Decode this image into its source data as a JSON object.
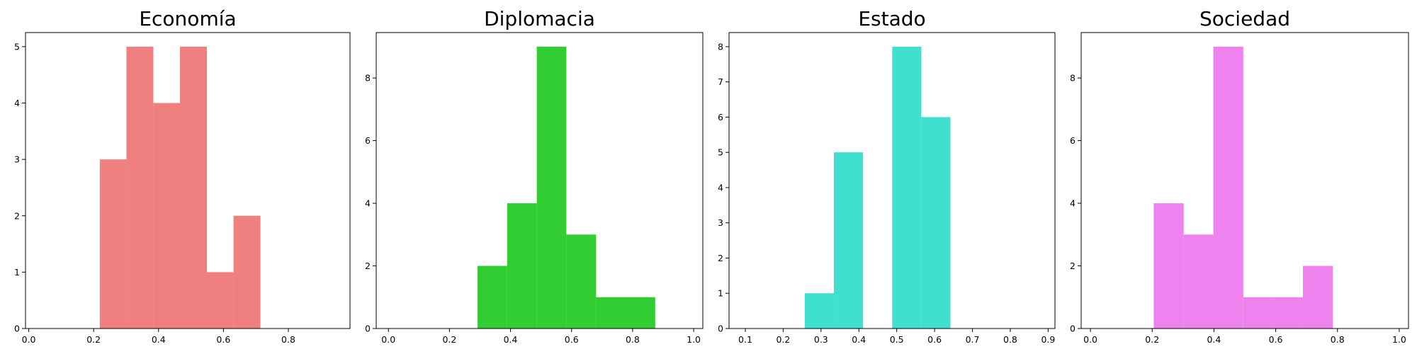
{
  "chart_data": [
    {
      "type": "bar",
      "title": "Economía",
      "color": "#f08080",
      "bins": [
        {
          "x0": 0.219,
          "x1": 0.301,
          "count": 3
        },
        {
          "x0": 0.301,
          "x1": 0.384,
          "count": 5
        },
        {
          "x0": 0.384,
          "x1": 0.466,
          "count": 4
        },
        {
          "x0": 0.466,
          "x1": 0.549,
          "count": 5
        },
        {
          "x0": 0.549,
          "x1": 0.631,
          "count": 1
        },
        {
          "x0": 0.631,
          "x1": 0.714,
          "count": 2
        }
      ],
      "xlim": [
        -0.01,
        0.99
      ],
      "ylim": [
        0,
        5.25
      ],
      "xticks": [
        0.0,
        0.2,
        0.4,
        0.6,
        0.8
      ],
      "xtick_labels": [
        "0.0",
        "0.2",
        "0.4",
        "0.6",
        "0.8"
      ],
      "yticks": [
        0,
        1,
        2,
        3,
        4,
        5
      ],
      "ytick_labels": [
        "0",
        "1",
        "2",
        "3",
        "4",
        "5"
      ]
    },
    {
      "type": "bar",
      "title": "Diplomacia",
      "color": "#32cd32",
      "bins": [
        {
          "x0": 0.292,
          "x1": 0.389,
          "count": 2
        },
        {
          "x0": 0.389,
          "x1": 0.486,
          "count": 4
        },
        {
          "x0": 0.486,
          "x1": 0.583,
          "count": 9
        },
        {
          "x0": 0.583,
          "x1": 0.68,
          "count": 3
        },
        {
          "x0": 0.68,
          "x1": 0.777,
          "count": 1
        },
        {
          "x0": 0.777,
          "x1": 0.874,
          "count": 1
        }
      ],
      "xlim": [
        -0.04,
        1.03
      ],
      "ylim": [
        0,
        9.45
      ],
      "xticks": [
        0.0,
        0.2,
        0.4,
        0.6,
        0.8,
        1.0
      ],
      "xtick_labels": [
        "0.0",
        "0.2",
        "0.4",
        "0.6",
        "0.8",
        "1.0"
      ],
      "yticks": [
        0,
        2,
        4,
        6,
        8
      ],
      "ytick_labels": [
        "0",
        "2",
        "4",
        "6",
        "8"
      ]
    },
    {
      "type": "bar",
      "title": "Estado",
      "color": "#40e0d0",
      "bins": [
        {
          "x0": 0.257,
          "x1": 0.334,
          "count": 1
        },
        {
          "x0": 0.334,
          "x1": 0.411,
          "count": 5
        },
        {
          "x0": 0.411,
          "x1": 0.488,
          "count": 0
        },
        {
          "x0": 0.488,
          "x1": 0.565,
          "count": 8
        },
        {
          "x0": 0.565,
          "x1": 0.642,
          "count": 6
        }
      ],
      "xlim": [
        0.057,
        0.918
      ],
      "ylim": [
        0,
        8.4
      ],
      "xticks": [
        0.1,
        0.2,
        0.3,
        0.4,
        0.5,
        0.6,
        0.7,
        0.8,
        0.9
      ],
      "xtick_labels": [
        "0.1",
        "0.2",
        "0.3",
        "0.4",
        "0.5",
        "0.6",
        "0.7",
        "0.8",
        "0.9"
      ],
      "yticks": [
        0,
        1,
        2,
        3,
        4,
        5,
        6,
        7,
        8
      ],
      "ytick_labels": [
        "0",
        "1",
        "2",
        "3",
        "4",
        "5",
        "6",
        "7",
        "8"
      ]
    },
    {
      "type": "bar",
      "title": "Sociedad",
      "color": "#ee82ee",
      "bins": [
        {
          "x0": 0.205,
          "x1": 0.302,
          "count": 4
        },
        {
          "x0": 0.302,
          "x1": 0.398,
          "count": 3
        },
        {
          "x0": 0.398,
          "x1": 0.495,
          "count": 9
        },
        {
          "x0": 0.495,
          "x1": 0.592,
          "count": 1
        },
        {
          "x0": 0.592,
          "x1": 0.688,
          "count": 1
        },
        {
          "x0": 0.688,
          "x1": 0.785,
          "count": 2
        }
      ],
      "xlim": [
        -0.03,
        1.03
      ],
      "ylim": [
        0,
        9.45
      ],
      "xticks": [
        0.0,
        0.2,
        0.4,
        0.6,
        0.8,
        1.0
      ],
      "xtick_labels": [
        "0.0",
        "0.2",
        "0.4",
        "0.6",
        "0.8",
        "1.0"
      ],
      "yticks": [
        0,
        2,
        4,
        6,
        8
      ],
      "ytick_labels": [
        "0",
        "2",
        "4",
        "6",
        "8"
      ]
    }
  ]
}
